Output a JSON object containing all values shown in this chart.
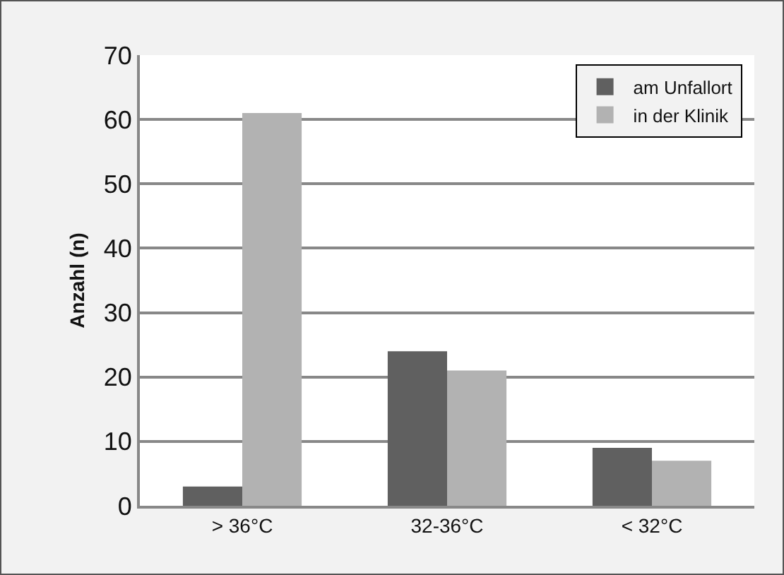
{
  "chart_data": {
    "type": "bar",
    "ylabel": "Anzahl (n)",
    "categories": [
      "> 36°C",
      "32-36°C",
      "< 32°C"
    ],
    "series": [
      {
        "name": "am Unfallort",
        "color": "#606060",
        "values": [
          3,
          24,
          9
        ]
      },
      {
        "name": "in der Klinik",
        "color": "#b2b2b2",
        "values": [
          61,
          21,
          7
        ]
      }
    ],
    "ylim": [
      0,
      70
    ],
    "yticks": [
      0,
      10,
      20,
      30,
      40,
      50,
      60,
      70
    ],
    "grid": "y",
    "legend": "top right"
  }
}
